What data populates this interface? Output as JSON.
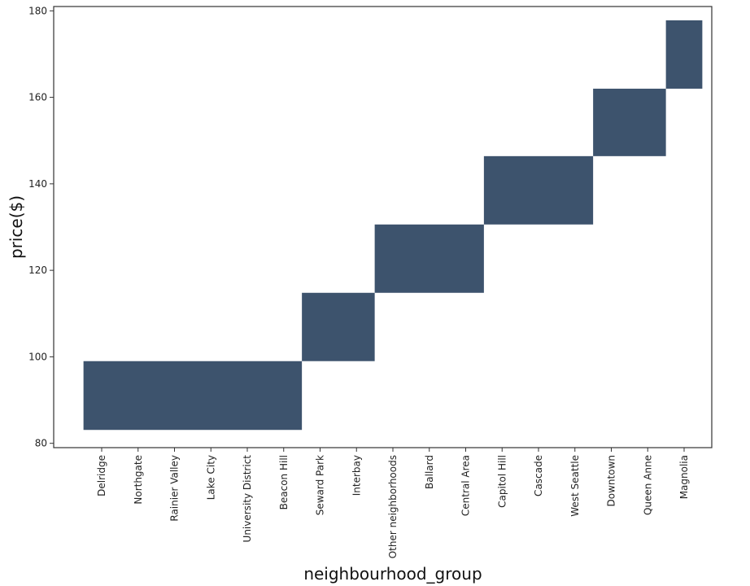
{
  "chart_data": {
    "type": "heatmap",
    "xlabel": "neighbourhood_group",
    "ylabel": "price($)",
    "categories": [
      "Delridge",
      "Northgate",
      "Rainier Valley",
      "Lake City",
      "University District",
      "Beacon Hill",
      "Seward Park",
      "Interbay",
      "Other neighborhoods",
      "Ballard",
      "Central Area",
      "Capitol Hill",
      "Cascade",
      "West Seattle",
      "Downtown",
      "Queen Anne",
      "Magnolia"
    ],
    "ylim": [
      79,
      181
    ],
    "yticks": [
      80,
      100,
      120,
      140,
      160,
      180
    ],
    "bins": [
      {
        "from": "Delridge",
        "to": "Beacon Hill",
        "ymin": 83.1,
        "ymax": 99.0
      },
      {
        "from": "Seward Park",
        "to": "Interbay",
        "ymin": 99.0,
        "ymax": 114.8
      },
      {
        "from": "Other neighborhoods",
        "to": "Central Area",
        "ymin": 114.8,
        "ymax": 130.6
      },
      {
        "from": "Capitol Hill",
        "to": "West Seattle",
        "ymin": 130.6,
        "ymax": 146.4
      },
      {
        "from": "Downtown",
        "to": "Queen Anne",
        "ymin": 146.4,
        "ymax": 162.0
      },
      {
        "from": "Magnolia",
        "to": "Magnolia",
        "ymin": 162.0,
        "ymax": 177.8
      }
    ],
    "cell_color": "#3d536d",
    "grid": false,
    "legend": "none"
  }
}
